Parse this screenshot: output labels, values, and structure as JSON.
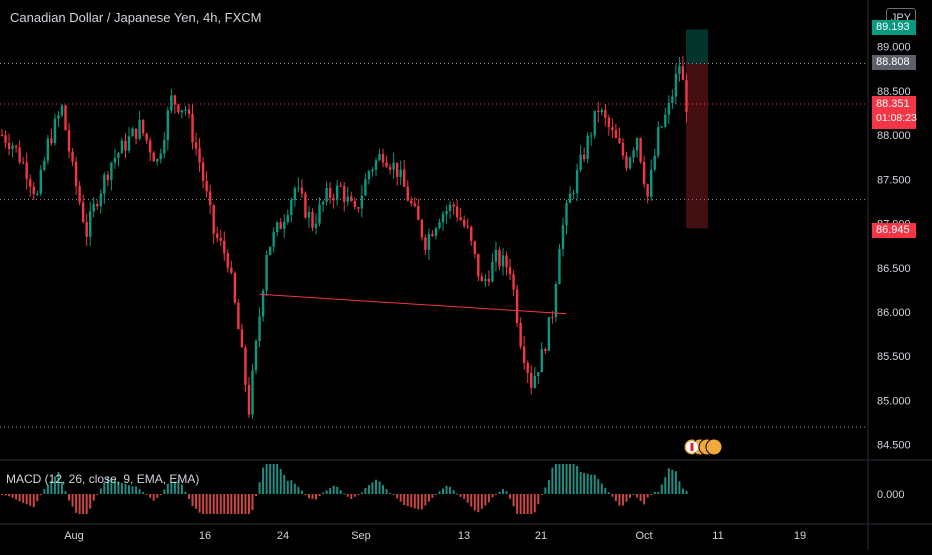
{
  "header": {
    "title": "Canadian Dollar / Japanese Yen, 4h, FXCM",
    "currency": "JPY"
  },
  "colors": {
    "up": "#089981",
    "down": "#f23645",
    "background": "#000000",
    "grid_text": "#d1d4dc",
    "trendline": "#f23645"
  },
  "price_tags": {
    "target": "89.193",
    "high": "88.808",
    "current": "88.351",
    "countdown": "01:08:23",
    "stop": "86.945"
  },
  "indicator": {
    "label": "MACD (12, 26, close, 9, EMA, EMA)",
    "zero_label": "0.000"
  },
  "chart_data": {
    "type": "candlestick",
    "title": "Canadian Dollar / Japanese Yen, 4h, FXCM",
    "y_ticks": [
      "89.000",
      "88.500",
      "88.000",
      "87.500",
      "87.000",
      "86.500",
      "86.000",
      "85.500",
      "85.000",
      "84.500"
    ],
    "x_ticks": [
      "Aug",
      "16",
      "24",
      "Sep",
      "13",
      "21",
      "Oct",
      "11",
      "19"
    ],
    "ylim": [
      84.35,
      89.3
    ],
    "horizontal_levels": [
      88.808,
      88.351,
      87.27,
      84.7
    ],
    "close_path": [
      {
        "x": 0,
        "y": 88.0
      },
      {
        "x": 3,
        "y": 87.9
      },
      {
        "x": 7,
        "y": 87.6
      },
      {
        "x": 10,
        "y": 87.3
      },
      {
        "x": 13,
        "y": 87.9
      },
      {
        "x": 17,
        "y": 88.3
      },
      {
        "x": 20,
        "y": 87.6
      },
      {
        "x": 24,
        "y": 86.9
      },
      {
        "x": 27,
        "y": 87.3
      },
      {
        "x": 31,
        "y": 87.7
      },
      {
        "x": 35,
        "y": 87.9
      },
      {
        "x": 39,
        "y": 88.1
      },
      {
        "x": 44,
        "y": 87.7
      },
      {
        "x": 48,
        "y": 88.4
      },
      {
        "x": 52,
        "y": 88.3
      },
      {
        "x": 56,
        "y": 87.7
      },
      {
        "x": 60,
        "y": 86.9
      },
      {
        "x": 64,
        "y": 86.6
      },
      {
        "x": 67,
        "y": 85.8
      },
      {
        "x": 70,
        "y": 84.9
      },
      {
        "x": 72,
        "y": 85.6
      },
      {
        "x": 75,
        "y": 86.7
      },
      {
        "x": 79,
        "y": 87.0
      },
      {
        "x": 83,
        "y": 87.4
      },
      {
        "x": 88,
        "y": 87.0
      },
      {
        "x": 92,
        "y": 87.3
      },
      {
        "x": 96,
        "y": 87.4
      },
      {
        "x": 100,
        "y": 87.1
      },
      {
        "x": 104,
        "y": 87.6
      },
      {
        "x": 108,
        "y": 87.8
      },
      {
        "x": 112,
        "y": 87.6
      },
      {
        "x": 116,
        "y": 87.2
      },
      {
        "x": 120,
        "y": 86.8
      },
      {
        "x": 124,
        "y": 87.1
      },
      {
        "x": 128,
        "y": 87.2
      },
      {
        "x": 132,
        "y": 86.9
      },
      {
        "x": 136,
        "y": 86.3
      },
      {
        "x": 140,
        "y": 86.6
      },
      {
        "x": 144,
        "y": 86.5
      },
      {
        "x": 147,
        "y": 85.7
      },
      {
        "x": 150,
        "y": 85.2
      },
      {
        "x": 153,
        "y": 85.5
      },
      {
        "x": 156,
        "y": 86.0
      },
      {
        "x": 158,
        "y": 86.8
      },
      {
        "x": 161,
        "y": 87.3
      },
      {
        "x": 165,
        "y": 87.8
      },
      {
        "x": 169,
        "y": 88.3
      },
      {
        "x": 173,
        "y": 88.0
      },
      {
        "x": 177,
        "y": 87.7
      },
      {
        "x": 180,
        "y": 88.0
      },
      {
        "x": 183,
        "y": 87.3
      },
      {
        "x": 186,
        "y": 88.0
      },
      {
        "x": 189,
        "y": 88.3
      },
      {
        "x": 192,
        "y": 88.8
      },
      {
        "x": 194,
        "y": 88.35
      }
    ],
    "trendline": {
      "from": {
        "x": 73,
        "y": 86.2
      },
      "to": {
        "x": 160,
        "y": 85.98
      }
    },
    "position": {
      "type": "short",
      "entry": 88.808,
      "target": 89.193,
      "stop": 86.945
    },
    "macd": {
      "name": "MACD (12, 26, close, 9, EMA, EMA)",
      "zero": "0.000"
    }
  }
}
